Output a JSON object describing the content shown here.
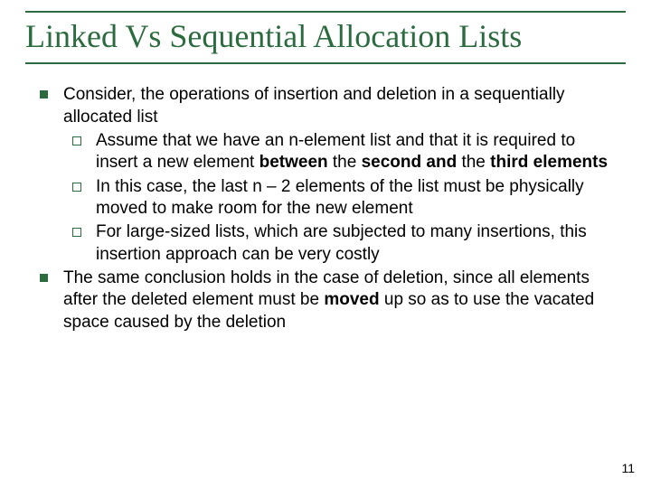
{
  "colors": {
    "accent": "#2b6b3f",
    "text": "#000000",
    "background": "#ffffff"
  },
  "title": "Linked Vs Sequential Allocation Lists",
  "bullets": [
    {
      "text": "Consider, the operations of insertion and deletion in a sequentially allocated list",
      "sub": [
        {
          "html": "Assume that we have an n-element list and that it is required to insert a new element <b>between</b> the <b>second and</b> the <b>third elements</b>"
        },
        {
          "html": "In this case, the last n – 2 elements of the list must be physically moved to make room for the new element"
        },
        {
          "html": "For large-sized lists, which are subjected to many insertions, this insertion approach can be very costly"
        }
      ]
    },
    {
      "html": "The same conclusion holds in the case of deletion, since all elements after the deleted element must be <b>moved</b> up so as to use the vacated space caused by the deletion"
    }
  ],
  "page_number": "11"
}
